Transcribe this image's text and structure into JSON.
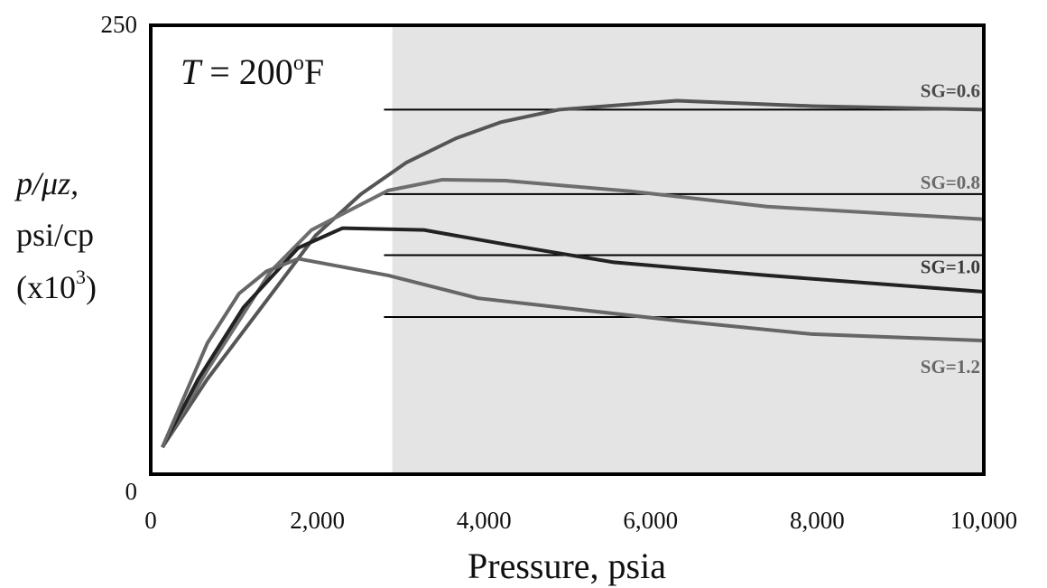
{
  "chart_data": {
    "type": "line",
    "title": "",
    "xlabel": "Pressure, psia",
    "ylabel_lines": [
      "p/μz,",
      "psi/cp",
      "(x10³)"
    ],
    "ylabel": {
      "var": "p/μz,",
      "unit": "psi/cp",
      "scale_base": "(x10",
      "scale_exp": "3",
      "scale_close": ")"
    },
    "xlim": [
      0,
      10000
    ],
    "ylim": [
      0,
      250
    ],
    "x_tick_labels": [
      "0",
      "2,000",
      "4,000",
      "6,000",
      "8,000",
      "10,000"
    ],
    "x_ticks": [
      0,
      2000,
      4000,
      6000,
      8000,
      10000
    ],
    "y_tick_labels": [
      "0",
      "250"
    ],
    "y_ticks": [
      0,
      250
    ],
    "grid": false,
    "annotation": {
      "italic": "T",
      "rest": " = 200",
      "deg": "o",
      "unit": "F"
    },
    "shaded_region": {
      "x_from": 2900,
      "x_to": 10000,
      "color": "#e4e4e4"
    },
    "series": [
      {
        "name": "SG=0.6",
        "color": "#555555",
        "label_color": "#4a4a4a",
        "reference_level": 203,
        "x": [
          140,
          680,
          1330,
          1980,
          2524,
          3066,
          3662,
          4200,
          4900,
          6316,
          7940,
          10000
        ],
        "y": [
          15,
          53,
          93,
          133,
          156,
          173.5,
          187,
          196,
          203,
          208,
          205,
          203
        ]
      },
      {
        "name": "SG=0.8",
        "color": "#6e6e6e",
        "label_color": "#6a6a6a",
        "reference_level": 156,
        "x": [
          140,
          680,
          1440,
          1930,
          2850,
          3500,
          4260,
          5770,
          7400,
          10000
        ],
        "y": [
          15,
          58,
          113,
          136,
          158,
          164,
          163.5,
          157.5,
          149,
          142
        ]
      },
      {
        "name": "SG=1.0",
        "color": "#222222",
        "label_color": "#3a3a3a",
        "reference_level": 122,
        "x": [
          140,
          570,
          1115,
          1770,
          2300,
          3280,
          4260,
          5560,
          7400,
          10000
        ],
        "y": [
          15,
          53,
          93,
          126,
          137,
          136,
          128,
          118,
          110.7,
          101.6
        ]
      },
      {
        "name": "SG=1.2",
        "color": "#666666",
        "label_color": "#666666",
        "reference_level": 87.5,
        "x": [
          140,
          680,
          1060,
          1390,
          1770,
          2850,
          3930,
          6316,
          7940,
          10000
        ],
        "y": [
          15,
          73,
          100.6,
          113,
          120,
          110.7,
          98,
          85.5,
          78,
          74.4
        ]
      }
    ],
    "reference_lines_from_x": 2800
  }
}
